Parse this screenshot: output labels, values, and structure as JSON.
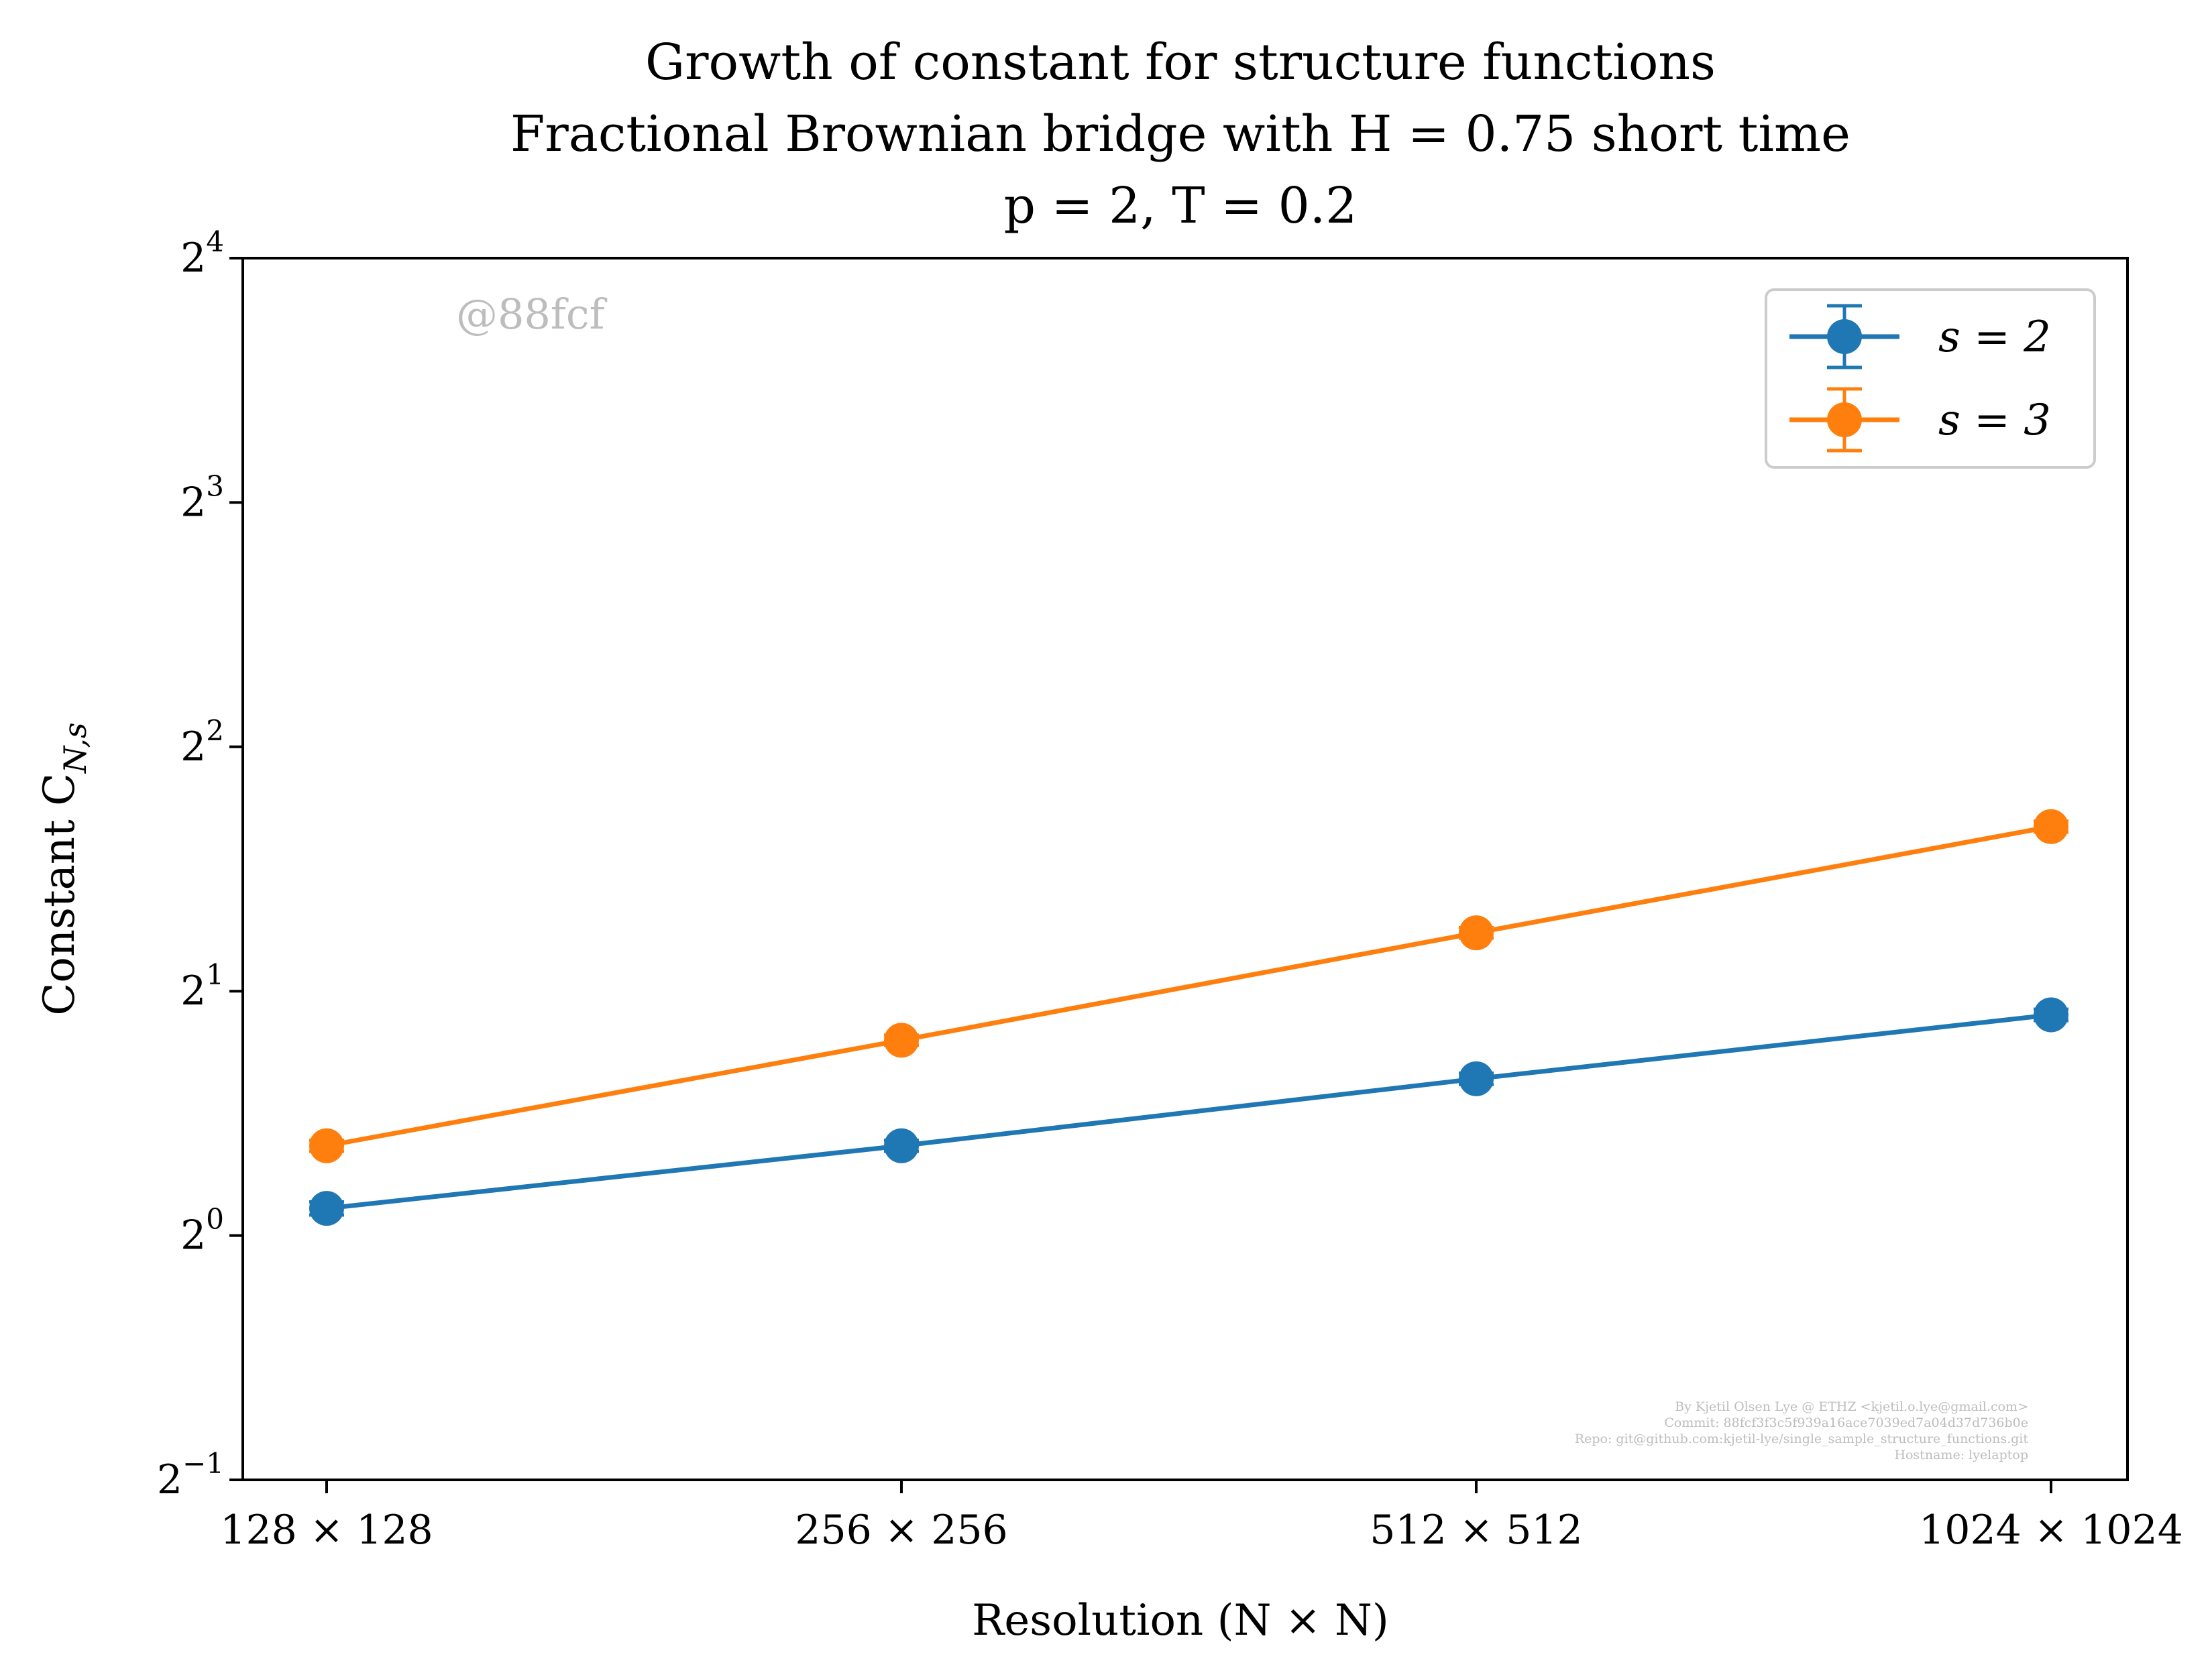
{
  "chart_data": {
    "type": "line",
    "title_lines": [
      "Growth of constant for structure functions",
      "Fractional Brownian bridge with H = 0.75 short time",
      "p = 2, T = 0.2"
    ],
    "xlabel": "Resolution (N × N)",
    "ylabel": "Constant C",
    "ylabel_subscript": "N,s",
    "categories": [
      "128 × 128",
      "256 × 256",
      "512 × 512",
      "1024 × 1024"
    ],
    "y_scale": "log2",
    "ylim": [
      0.5,
      16
    ],
    "y_ticks": [
      {
        "value": 0.5,
        "base": "2",
        "exp": "−1"
      },
      {
        "value": 1,
        "base": "2",
        "exp": "0"
      },
      {
        "value": 2,
        "base": "2",
        "exp": "1"
      },
      {
        "value": 4,
        "base": "2",
        "exp": "2"
      },
      {
        "value": 8,
        "base": "2",
        "exp": "3"
      },
      {
        "value": 16,
        "base": "2",
        "exp": "4"
      }
    ],
    "series": [
      {
        "name": "s = 2",
        "color": "#1f77b4",
        "values": [
          1.08,
          1.29,
          1.56,
          1.87
        ],
        "errors": [
          0.02,
          0.02,
          0.025,
          0.03
        ]
      },
      {
        "name": "s = 3",
        "color": "#ff7f0e",
        "values": [
          1.29,
          1.74,
          2.36,
          3.19
        ],
        "errors": [
          0.02,
          0.025,
          0.035,
          0.05
        ]
      }
    ],
    "legend_position": "top-right",
    "grid": false
  },
  "watermark": "@88fcf",
  "credit_lines": [
    "By Kjetil Olsen Lye @ ETHZ <kjetil.o.lye@gmail.com>",
    "Commit: 88fcf3f3c5f939a16ace7039ed7a04d37d736b0e",
    "Repo: git@github.com:kjetil-lye/single_sample_structure_functions.git",
    "Hostname: lyelaptop"
  ]
}
